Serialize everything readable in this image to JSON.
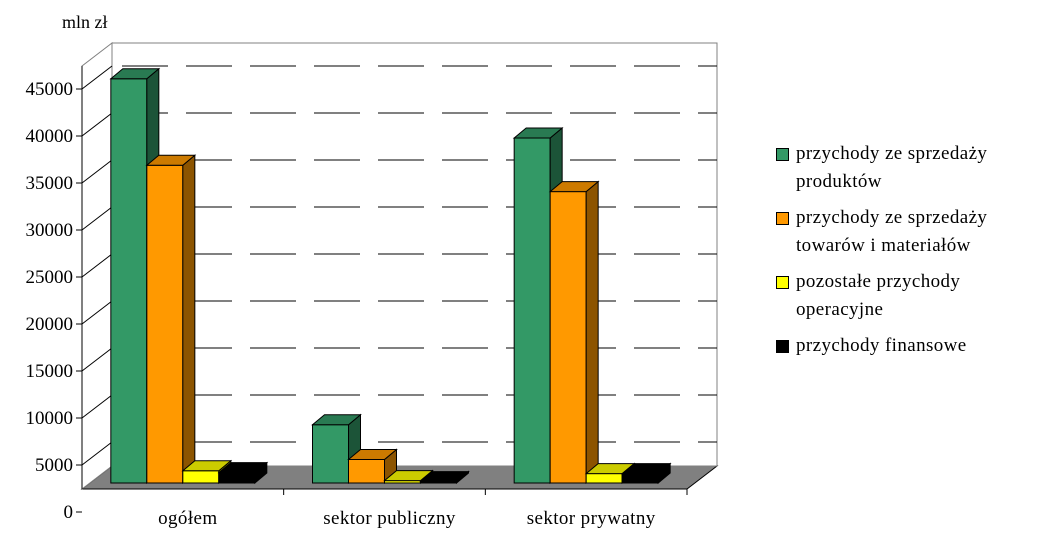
{
  "chart_data": {
    "type": "bar",
    "ylabel": "mln zł",
    "ylim": [
      0,
      45000
    ],
    "yticks": [
      "0",
      "5000",
      "10000",
      "15000",
      "20000",
      "25000",
      "30000",
      "35000",
      "40000",
      "45000"
    ],
    "categories": [
      "ogółem",
      "sektor publiczny",
      "sektor prywatny"
    ],
    "series": [
      {
        "name": "przychody ze sprzedaży produktów",
        "color": "#339966",
        "values": [
          43000,
          6200,
          36700
        ]
      },
      {
        "name": "przychody ze sprzedaży towarów i materiałów",
        "color": "#ff9900",
        "values": [
          33800,
          2500,
          31000
        ]
      },
      {
        "name": "pozostałe przychody operacyjne",
        "color": "#ffff00",
        "values": [
          1300,
          250,
          1000
        ]
      },
      {
        "name": "przychody finansowe",
        "color": "#000000",
        "values": [
          1100,
          150,
          1000
        ]
      }
    ],
    "grid": true,
    "legend_position": "right",
    "style": "3d-column"
  }
}
